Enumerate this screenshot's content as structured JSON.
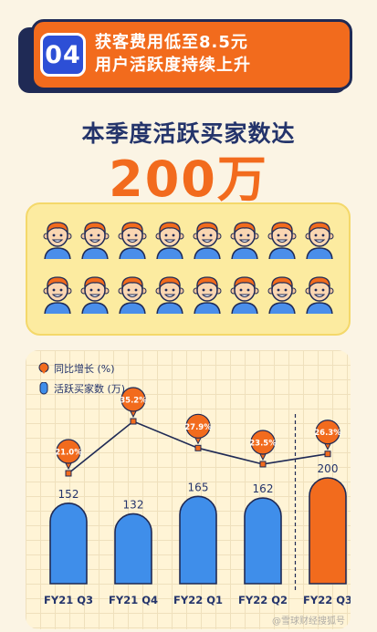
{
  "header": {
    "badge": "04",
    "line1": "获客费用低至8.5元",
    "line2": "用户活跃度持续上升"
  },
  "headline": {
    "title": "本季度活跃买家数达",
    "figure": "200万"
  },
  "colors": {
    "accent": "#F26B1D",
    "navy": "#1F2A55",
    "bar": "#3F8EEA",
    "panel": "#FCEBA0"
  },
  "chart_data": {
    "type": "bar",
    "categories": [
      "FY21 Q3",
      "FY21 Q4",
      "FY22 Q1",
      "FY22 Q2",
      "FY22 Q3"
    ],
    "series": [
      {
        "name": "活跃买家数 (万)",
        "type": "bar",
        "values": [
          152,
          132,
          165,
          162,
          200
        ],
        "labels": [
          "152",
          "132",
          "165",
          "162",
          "200"
        ],
        "highlight_index": 4
      },
      {
        "name": "同比增长 (%)",
        "type": "line",
        "values": [
          21.0,
          35.2,
          27.9,
          23.5,
          26.3
        ],
        "labels": [
          "21.0%",
          "35.2%",
          "27.9%",
          "23.5%",
          "26.3%"
        ]
      }
    ],
    "legend": [
      "同比增长 (%)",
      "活跃买家数 (万)"
    ],
    "legend_position": "top-left",
    "grid": true
  },
  "watermark": "@雪球财经搜狐号"
}
